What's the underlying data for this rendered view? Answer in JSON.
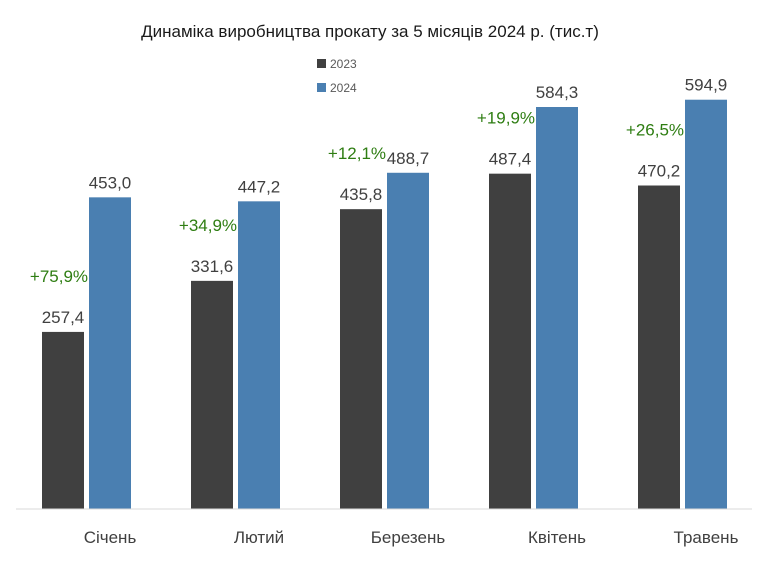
{
  "chart_data": {
    "type": "bar",
    "title": "Динаміка виробництва прокату за 5 місяців 2024 р. (тис.т)",
    "categories": [
      "Січень",
      "Лютий",
      "Березень",
      "Квітень",
      "Травень"
    ],
    "series": [
      {
        "name": "2023",
        "color": "#404040",
        "values": [
          257.4,
          331.6,
          435.8,
          487.4,
          470.2
        ],
        "labels": [
          "257,4",
          "331,6",
          "435,8",
          "487,4",
          "470,2"
        ]
      },
      {
        "name": "2024",
        "color": "#4a7fb1",
        "values": [
          453.0,
          447.2,
          488.7,
          584.3,
          594.9
        ],
        "labels": [
          "453,0",
          "447,2",
          "488,7",
          "584,3",
          "594,9"
        ]
      }
    ],
    "growth": [
      "+75,9%",
      "+34,9%",
      "+12,1%",
      "+19,9%",
      "+26,5%"
    ],
    "growth_color": "#2e7d12",
    "ylim": [
      0,
      625
    ],
    "legend_position": "top-center",
    "grid": false,
    "xlabel": "",
    "ylabel": ""
  }
}
